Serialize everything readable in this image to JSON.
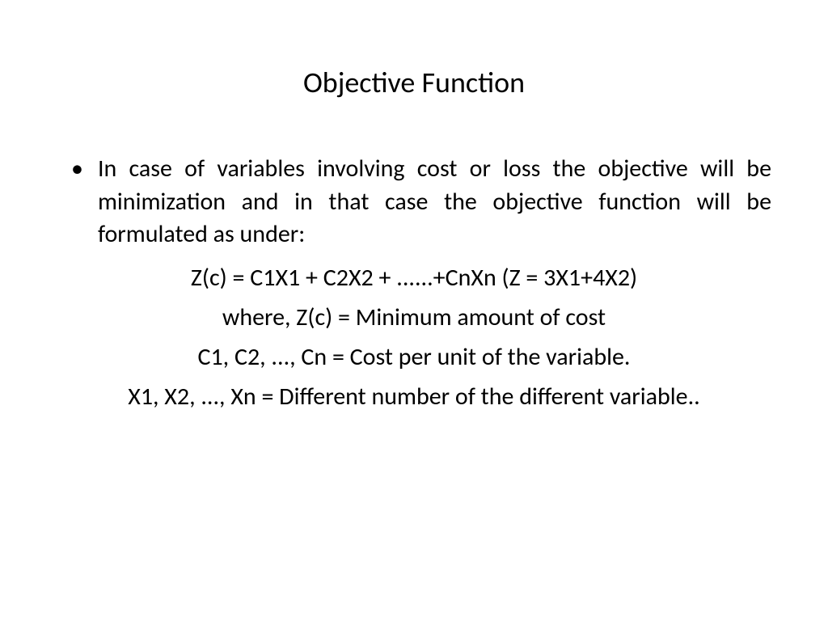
{
  "title": "Objective Function",
  "bullet_point": "In case of variables involving cost or loss the objective will be minimization and in that case the objective function will be formulated as under:",
  "formula": "Z(c) = C1X1 + C2X2 + ......+CnXn  (Z = 3X1+4X2)",
  "where_line": "where, Z(c) = Minimum amount of cost",
  "c_definition": "C1, C2, ..., Cn = Cost per unit of the variable.",
  "x_definition": "X1, X2, ..., Xn = Different number of the different variable.."
}
